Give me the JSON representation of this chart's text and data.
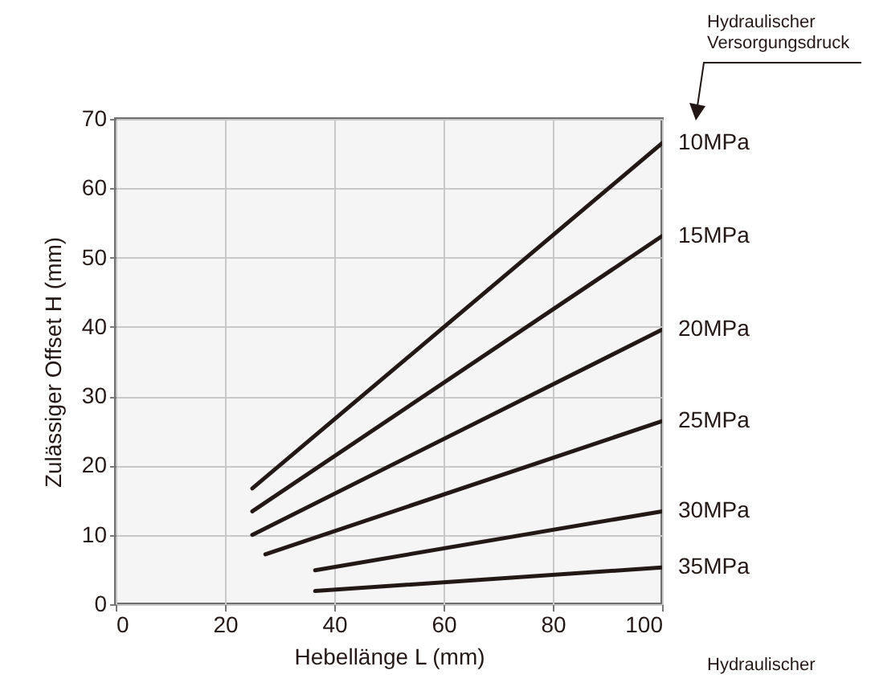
{
  "chart_data": {
    "type": "line",
    "xlabel": "Hebellänge L (mm)",
    "ylabel": "Zulässiger Offset H (mm)",
    "xlim": [
      0,
      100
    ],
    "xticks": [
      0,
      20,
      40,
      60,
      80,
      100
    ],
    "ylim": [
      0,
      70
    ],
    "yticks": [
      0,
      10,
      20,
      30,
      40,
      50,
      60,
      70
    ],
    "grid": true,
    "line_style": "solid",
    "annotations": [
      "Hydraulischer Versorgungsdruck",
      "Hydraulischer"
    ],
    "series": [
      {
        "name": "10MPa",
        "color": "#231815",
        "x": [
          25,
          100
        ],
        "values": [
          16.7,
          66.5
        ]
      },
      {
        "name": "15MPa",
        "color": "#231815",
        "x": [
          25,
          100
        ],
        "values": [
          13.4,
          53.1
        ]
      },
      {
        "name": "20MPa",
        "color": "#231815",
        "x": [
          25,
          100
        ],
        "values": [
          10.0,
          39.6
        ]
      },
      {
        "name": "25MPa",
        "color": "#231815",
        "x": [
          27.4,
          100
        ],
        "values": [
          7.2,
          26.4
        ]
      },
      {
        "name": "30MPa",
        "color": "#231815",
        "x": [
          36.5,
          100
        ],
        "values": [
          4.9,
          13.4
        ]
      },
      {
        "name": "35MPa",
        "color": "#231815",
        "x": [
          36.5,
          100
        ],
        "values": [
          1.9,
          5.3
        ]
      }
    ]
  }
}
